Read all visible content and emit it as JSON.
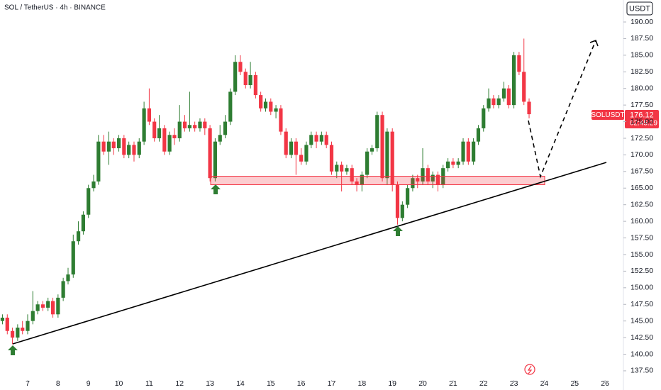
{
  "chart_data": {
    "type": "candlestick",
    "title": "SOL / TetherUS · 4h · BINANCE",
    "currency": "USDT",
    "up_color": "#2e7d32",
    "down_color": "#f23645",
    "price_label": {
      "symbol": "SOLUSDT",
      "price": 176.12,
      "countdown": "02:45:29"
    },
    "xlim": [
      6.09,
      26.51
    ],
    "xticks": [
      7,
      8,
      9,
      10,
      11,
      12,
      13,
      14,
      15,
      16,
      17,
      18,
      19,
      20,
      21,
      22,
      23,
      24,
      25,
      26
    ],
    "ylim": [
      135.68,
      193.31
    ],
    "yticks": [
      {
        "value": 137.5,
        "label": "137.50"
      },
      {
        "value": 140,
        "label": "140.00"
      },
      {
        "value": 142.5,
        "label": "142.50"
      },
      {
        "value": 145,
        "label": "145.00"
      },
      {
        "value": 147.5,
        "label": "147.50"
      },
      {
        "value": 150,
        "label": "150.00"
      },
      {
        "value": 152.5,
        "label": "152.50"
      },
      {
        "value": 155,
        "label": "155.00"
      },
      {
        "value": 157.5,
        "label": "157.50"
      },
      {
        "value": 160,
        "label": "160.00"
      },
      {
        "value": 162.5,
        "label": "162.50"
      },
      {
        "value": 165,
        "label": "165.00"
      },
      {
        "value": 167.5,
        "label": "167.50"
      },
      {
        "value": 170,
        "label": "170.00"
      },
      {
        "value": 172.5,
        "label": "172.50"
      },
      {
        "value": 175,
        "label": "175.00"
      },
      {
        "value": 177.5,
        "label": "177.50"
      },
      {
        "value": 180,
        "label": "180.00"
      },
      {
        "value": 182.5,
        "label": "182.50"
      },
      {
        "value": 185,
        "label": "185.00"
      },
      {
        "value": 187.5,
        "label": "187.50"
      },
      {
        "value": 190,
        "label": "190.00"
      }
    ],
    "x": [
      6.17,
      6.33,
      6.5,
      6.67,
      6.83,
      7,
      7.17,
      7.33,
      7.5,
      7.67,
      7.83,
      8,
      8.17,
      8.33,
      8.5,
      8.67,
      8.83,
      9,
      9.17,
      9.33,
      9.5,
      9.67,
      9.83,
      10,
      10.17,
      10.33,
      10.5,
      10.67,
      10.83,
      11,
      11.17,
      11.33,
      11.5,
      11.67,
      11.83,
      12,
      12.17,
      12.33,
      12.5,
      12.67,
      12.83,
      13,
      13.17,
      13.33,
      13.5,
      13.67,
      13.83,
      14,
      14.17,
      14.33,
      14.5,
      14.67,
      14.83,
      15,
      15.17,
      15.33,
      15.5,
      15.67,
      15.83,
      16,
      16.17,
      16.33,
      16.5,
      16.67,
      16.83,
      17,
      17.17,
      17.33,
      17.5,
      17.67,
      17.83,
      18,
      18.17,
      18.33,
      18.5,
      18.67,
      18.83,
      19,
      19.17,
      19.33,
      19.5,
      19.67,
      19.83,
      20,
      20.17,
      20.33,
      20.5,
      20.67,
      20.83,
      21,
      21.17,
      21.33,
      21.5,
      21.67,
      21.83,
      22,
      22.17,
      22.33,
      22.5,
      22.67,
      22.83,
      23,
      23.17,
      23.33,
      23.5
    ],
    "open": [
      145,
      145.5,
      143.5,
      142.5,
      144,
      143.5,
      145,
      146.5,
      147.5,
      147,
      148,
      146,
      148.5,
      151,
      152,
      157,
      158.5,
      161,
      165,
      166,
      172,
      170.5,
      172,
      171,
      172.5,
      170,
      171.5,
      170,
      172,
      177,
      175,
      172.5,
      174,
      170.5,
      173,
      172.5,
      175,
      174,
      174.5,
      174,
      175,
      174,
      166.5,
      172,
      173,
      175,
      179.5,
      184,
      182.5,
      180.5,
      182,
      179,
      177,
      178,
      176.5,
      177,
      173.5,
      170,
      172,
      170,
      169,
      171.5,
      173,
      172,
      173,
      171.5,
      167.5,
      168.5,
      167.5,
      168,
      166,
      165.5,
      167,
      170.5,
      171,
      176,
      166.5,
      173.5,
      165.5,
      160.5,
      162.5,
      165,
      166.5,
      166,
      168,
      166,
      167,
      165.5,
      168,
      169,
      168.5,
      169,
      172,
      169,
      172,
      174,
      177,
      178.5,
      177.5,
      178.5,
      180,
      177.5,
      185,
      182.5,
      178
    ],
    "high": [
      146,
      146,
      144,
      144.5,
      145,
      146,
      149.5,
      148,
      148,
      148.5,
      148.5,
      149,
      151.5,
      153,
      158,
      160,
      161.5,
      165.5,
      167,
      173,
      173,
      173.5,
      172.5,
      173,
      173,
      172,
      172,
      172.5,
      178,
      180,
      175.5,
      176,
      174.5,
      173.5,
      174,
      177.5,
      176,
      179.5,
      175,
      175.5,
      175.5,
      174.5,
      172.5,
      174.5,
      176,
      180,
      185,
      185,
      183,
      184,
      182.5,
      179.5,
      178.5,
      178.5,
      177.5,
      177.5,
      174,
      172.5,
      172.5,
      171,
      172,
      173.5,
      173.5,
      173.5,
      173.5,
      172,
      169,
      169,
      168.5,
      168.5,
      166.5,
      167.5,
      171,
      171.5,
      176.5,
      176.5,
      174,
      174,
      166,
      163,
      165.5,
      167,
      167,
      171,
      168.5,
      167.5,
      167.5,
      168.5,
      169.5,
      169.5,
      169.5,
      172.5,
      172.5,
      172.5,
      174.5,
      177.5,
      180,
      179,
      179,
      181,
      180.5,
      185.5,
      185.5,
      187.5,
      178.5
    ],
    "low": [
      144.5,
      143,
      141.5,
      142,
      143,
      143,
      144.5,
      146,
      146.5,
      146.5,
      145.5,
      145.5,
      148,
      150.5,
      151.5,
      156.5,
      158,
      160.5,
      164.5,
      165.5,
      170,
      168.5,
      170,
      170.5,
      169.5,
      169.5,
      169,
      169.5,
      171.5,
      174.5,
      172,
      172,
      170,
      170,
      171.5,
      172,
      173.5,
      173.5,
      173.5,
      173.5,
      173,
      166,
      166,
      171.5,
      172.5,
      174.5,
      179,
      182,
      180,
      180,
      178.5,
      176.5,
      176.5,
      176,
      175.5,
      173,
      169.5,
      169.5,
      167,
      168.5,
      168.5,
      171,
      171,
      171.5,
      171,
      167,
      166.5,
      164.5,
      167,
      165.5,
      164.5,
      164.5,
      166.5,
      170,
      170.5,
      166,
      165.5,
      164.5,
      159.5,
      160,
      162,
      164.5,
      165,
      165.5,
      165.5,
      165,
      164.5,
      165,
      167.5,
      168,
      168,
      168.5,
      168.5,
      168.5,
      171.5,
      173.5,
      176.5,
      177,
      177,
      178,
      177,
      177,
      182,
      177.5,
      175.5
    ],
    "close": [
      145.5,
      143.5,
      142.5,
      144,
      143.5,
      145,
      146.5,
      147.5,
      147,
      148,
      146,
      148.5,
      151,
      152,
      157,
      158.5,
      161,
      165,
      166,
      172,
      170.5,
      172,
      171,
      172.5,
      170,
      171.5,
      170,
      172,
      177,
      175,
      172.5,
      174,
      170.5,
      173,
      172.5,
      175,
      174,
      174.5,
      174,
      175,
      174,
      166.5,
      172,
      173,
      175,
      179.5,
      184,
      182.5,
      180.5,
      182,
      179,
      177,
      178,
      176.5,
      177,
      173.5,
      170,
      172,
      170,
      169,
      171.5,
      173,
      172,
      173,
      171.5,
      167.5,
      168.5,
      167.5,
      168,
      166,
      165.5,
      167,
      170.5,
      171,
      176,
      166.5,
      173.5,
      165.5,
      160.5,
      162.5,
      165,
      166.5,
      166,
      168,
      166,
      167,
      165.5,
      168,
      169,
      168.5,
      169,
      172,
      169,
      172,
      174,
      177,
      178.5,
      177.5,
      178.5,
      180,
      177.5,
      185,
      182.5,
      178,
      176.12
    ]
  }
}
